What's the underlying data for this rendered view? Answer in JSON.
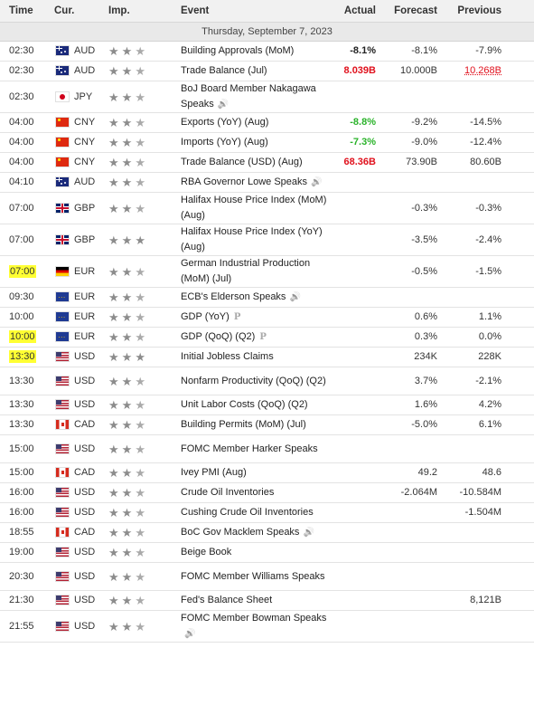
{
  "headers": {
    "time": "Time",
    "currency": "Cur.",
    "importance": "Imp.",
    "event": "Event",
    "actual": "Actual",
    "forecast": "Forecast",
    "previous": "Previous"
  },
  "date_label": "Thursday, September 7, 2023",
  "colors": {
    "positive": "#2bb32b",
    "negative": "#e0101c",
    "highlight": "#ffff33",
    "header_bg": "#f1f1f1",
    "date_bg": "#e9e9e9"
  },
  "rows": [
    {
      "time": "02:30",
      "flag": "australia-flag-icon",
      "currency": "AUD",
      "importance": 2,
      "event": "Building Approvals (MoM)",
      "actual": "-8.1%",
      "actual_style": "plain",
      "forecast": "-8.1%",
      "previous": "-7.9%",
      "previous_style": "plain",
      "tall": false,
      "highlight": false,
      "icon": ""
    },
    {
      "time": "02:30",
      "flag": "australia-flag-icon",
      "currency": "AUD",
      "importance": 2,
      "event": "Trade Balance (Jul)",
      "actual": "8.039B",
      "actual_style": "neg",
      "forecast": "10.000B",
      "previous": "10.268B",
      "previous_style": "red",
      "tall": false,
      "highlight": false,
      "icon": ""
    },
    {
      "time": "02:30",
      "flag": "japan-flag-icon",
      "currency": "JPY",
      "importance": 2,
      "event": "BoJ Board Member Nakagawa Speaks",
      "actual": "",
      "actual_style": "plain",
      "forecast": "",
      "previous": "",
      "previous_style": "plain",
      "tall": true,
      "highlight": false,
      "icon": "speaker"
    },
    {
      "time": "04:00",
      "flag": "china-flag-icon",
      "currency": "CNY",
      "importance": 2,
      "event": "Exports (YoY) (Aug)",
      "actual": "-8.8%",
      "actual_style": "pos",
      "forecast": "-9.2%",
      "previous": "-14.5%",
      "previous_style": "plain",
      "tall": false,
      "highlight": false,
      "icon": ""
    },
    {
      "time": "04:00",
      "flag": "china-flag-icon",
      "currency": "CNY",
      "importance": 2,
      "event": "Imports (YoY) (Aug)",
      "actual": "-7.3%",
      "actual_style": "pos",
      "forecast": "-9.0%",
      "previous": "-12.4%",
      "previous_style": "plain",
      "tall": false,
      "highlight": false,
      "icon": ""
    },
    {
      "time": "04:00",
      "flag": "china-flag-icon",
      "currency": "CNY",
      "importance": 2,
      "event": "Trade Balance (USD) (Aug)",
      "actual": "68.36B",
      "actual_style": "neg",
      "forecast": "73.90B",
      "previous": "80.60B",
      "previous_style": "plain",
      "tall": false,
      "highlight": false,
      "icon": ""
    },
    {
      "time": "04:10",
      "flag": "australia-flag-icon",
      "currency": "AUD",
      "importance": 2,
      "event": "RBA Governor Lowe Speaks",
      "actual": "",
      "actual_style": "plain",
      "forecast": "",
      "previous": "",
      "previous_style": "plain",
      "tall": false,
      "highlight": false,
      "icon": "speaker"
    },
    {
      "time": "07:00",
      "flag": "uk-flag-icon",
      "currency": "GBP",
      "importance": 2,
      "event": "Halifax House Price Index (MoM) (Aug)",
      "actual": "",
      "actual_style": "plain",
      "forecast": "-0.3%",
      "previous": "-0.3%",
      "previous_style": "plain",
      "tall": true,
      "highlight": false,
      "icon": ""
    },
    {
      "time": "07:00",
      "flag": "uk-flag-icon",
      "currency": "GBP",
      "importance": 3,
      "event": "Halifax House Price Index (YoY) (Aug)",
      "actual": "",
      "actual_style": "plain",
      "forecast": "-3.5%",
      "previous": "-2.4%",
      "previous_style": "plain",
      "tall": true,
      "highlight": false,
      "icon": ""
    },
    {
      "time": "07:00",
      "flag": "germany-flag-icon",
      "currency": "EUR",
      "importance": 2,
      "event": "German Industrial Production (MoM) (Jul)",
      "actual": "",
      "actual_style": "plain",
      "forecast": "-0.5%",
      "previous": "-1.5%",
      "previous_style": "plain",
      "tall": true,
      "highlight": true,
      "icon": ""
    },
    {
      "time": "09:30",
      "flag": "eu-flag-icon",
      "currency": "EUR",
      "importance": 2,
      "event": "ECB's Elderson Speaks",
      "actual": "",
      "actual_style": "plain",
      "forecast": "",
      "previous": "",
      "previous_style": "plain",
      "tall": false,
      "highlight": false,
      "icon": "speaker"
    },
    {
      "time": "10:00",
      "flag": "eu-flag-icon",
      "currency": "EUR",
      "importance": 2,
      "event": "GDP (YoY)",
      "actual": "",
      "actual_style": "plain",
      "forecast": "0.6%",
      "previous": "1.1%",
      "previous_style": "plain",
      "tall": false,
      "highlight": false,
      "icon": "prelim"
    },
    {
      "time": "10:00",
      "flag": "eu-flag-icon",
      "currency": "EUR",
      "importance": 2,
      "event": "GDP (QoQ) (Q2)",
      "actual": "",
      "actual_style": "plain",
      "forecast": "0.3%",
      "previous": "0.0%",
      "previous_style": "plain",
      "tall": false,
      "highlight": true,
      "icon": "prelim"
    },
    {
      "time": "13:30",
      "flag": "us-flag-icon",
      "currency": "USD",
      "importance": 3,
      "event": "Initial Jobless Claims",
      "actual": "",
      "actual_style": "plain",
      "forecast": "234K",
      "previous": "228K",
      "previous_style": "plain",
      "tall": false,
      "highlight": true,
      "icon": ""
    },
    {
      "time": "13:30",
      "flag": "us-flag-icon",
      "currency": "USD",
      "importance": 2,
      "event": "Nonfarm Productivity (QoQ) (Q2)",
      "actual": "",
      "actual_style": "plain",
      "forecast": "3.7%",
      "previous": "-2.1%",
      "previous_style": "plain",
      "tall": true,
      "highlight": false,
      "icon": ""
    },
    {
      "time": "13:30",
      "flag": "us-flag-icon",
      "currency": "USD",
      "importance": 2,
      "event": "Unit Labor Costs (QoQ) (Q2)",
      "actual": "",
      "actual_style": "plain",
      "forecast": "1.6%",
      "previous": "4.2%",
      "previous_style": "plain",
      "tall": false,
      "highlight": false,
      "icon": ""
    },
    {
      "time": "13:30",
      "flag": "canada-flag-icon",
      "currency": "CAD",
      "importance": 2,
      "event": "Building Permits (MoM) (Jul)",
      "actual": "",
      "actual_style": "plain",
      "forecast": "-5.0%",
      "previous": "6.1%",
      "previous_style": "plain",
      "tall": false,
      "highlight": false,
      "icon": ""
    },
    {
      "time": "15:00",
      "flag": "us-flag-icon",
      "currency": "USD",
      "importance": 2,
      "event": "FOMC Member Harker Speaks",
      "actual": "",
      "actual_style": "plain",
      "forecast": "",
      "previous": "",
      "previous_style": "plain",
      "tall": true,
      "highlight": false,
      "icon": ""
    },
    {
      "time": "15:00",
      "flag": "canada-flag-icon",
      "currency": "CAD",
      "importance": 2,
      "event": "Ivey PMI (Aug)",
      "actual": "",
      "actual_style": "plain",
      "forecast": "49.2",
      "previous": "48.6",
      "previous_style": "plain",
      "tall": false,
      "highlight": false,
      "icon": ""
    },
    {
      "time": "16:00",
      "flag": "us-flag-icon",
      "currency": "USD",
      "importance": 2,
      "event": "Crude Oil Inventories",
      "actual": "",
      "actual_style": "plain",
      "forecast": "-2.064M",
      "previous": "-10.584M",
      "previous_style": "plain",
      "tall": false,
      "highlight": false,
      "icon": ""
    },
    {
      "time": "16:00",
      "flag": "us-flag-icon",
      "currency": "USD",
      "importance": 2,
      "event": "Cushing Crude Oil Inventories",
      "actual": "",
      "actual_style": "plain",
      "forecast": "",
      "previous": "-1.504M",
      "previous_style": "plain",
      "tall": false,
      "highlight": false,
      "icon": ""
    },
    {
      "time": "18:55",
      "flag": "canada-flag-icon",
      "currency": "CAD",
      "importance": 2,
      "event": "BoC Gov Macklem Speaks",
      "actual": "",
      "actual_style": "plain",
      "forecast": "",
      "previous": "",
      "previous_style": "plain",
      "tall": false,
      "highlight": false,
      "icon": "speaker"
    },
    {
      "time": "19:00",
      "flag": "us-flag-icon",
      "currency": "USD",
      "importance": 2,
      "event": "Beige Book",
      "actual": "",
      "actual_style": "plain",
      "forecast": "",
      "previous": "",
      "previous_style": "plain",
      "tall": false,
      "highlight": false,
      "icon": ""
    },
    {
      "time": "20:30",
      "flag": "us-flag-icon",
      "currency": "USD",
      "importance": 2,
      "event": "FOMC Member Williams Speaks",
      "actual": "",
      "actual_style": "plain",
      "forecast": "",
      "previous": "",
      "previous_style": "plain",
      "tall": true,
      "highlight": false,
      "icon": ""
    },
    {
      "time": "21:30",
      "flag": "us-flag-icon",
      "currency": "USD",
      "importance": 2,
      "event": "Fed's Balance Sheet",
      "actual": "",
      "actual_style": "plain",
      "forecast": "",
      "previous": "8,121B",
      "previous_style": "plain",
      "tall": false,
      "highlight": false,
      "icon": ""
    },
    {
      "time": "21:55",
      "flag": "us-flag-icon",
      "currency": "USD",
      "importance": 2,
      "event": "FOMC Member Bowman Speaks",
      "actual": "",
      "actual_style": "plain",
      "forecast": "",
      "previous": "",
      "previous_style": "plain",
      "tall": true,
      "highlight": false,
      "icon": "speaker"
    }
  ]
}
